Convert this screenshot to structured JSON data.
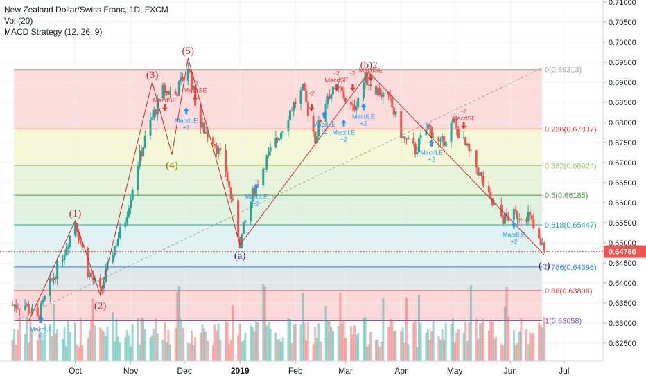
{
  "header": {
    "symbol_line": "New Zealand Dollar/Swiss Franc, 1D, FXCM",
    "indicator_vol": "Vol (20)",
    "indicator_macd": "MACD Strategy (12, 26, 9)"
  },
  "colors": {
    "up": "#26a69a",
    "down": "#ef5350",
    "wave": "#c62828",
    "signal_long": "#2196f3",
    "signal_short": "#e53935",
    "current_price_bg": "#ef5350"
  },
  "chart_data": {
    "type": "candlestick",
    "symbol": "New Zealand Dollar/Swiss Franc",
    "timeframe": "1D",
    "source": "FXCM",
    "y_range": [
      0.6205,
      0.7105
    ],
    "price_ticks": [
      "0.71000",
      "0.70500",
      "0.70000",
      "0.69500",
      "0.69000",
      "0.68500",
      "0.68000",
      "0.67500",
      "0.67000",
      "0.66500",
      "0.66000",
      "0.65500",
      "0.65000",
      "0.64500",
      "0.64000",
      "0.63500",
      "0.63000",
      "0.62500"
    ],
    "x_ticks": [
      {
        "label": "Oct",
        "date": "2018-10-01"
      },
      {
        "label": "Nov",
        "date": "2018-11-01"
      },
      {
        "label": "Dec",
        "date": "2018-12-01"
      },
      {
        "label": "2019",
        "date": "2019-01-01"
      },
      {
        "label": "Feb",
        "date": "2019-02-01"
      },
      {
        "label": "Mar",
        "date": "2019-03-01"
      },
      {
        "label": "Apr",
        "date": "2019-04-01"
      },
      {
        "label": "May",
        "date": "2019-05-01"
      },
      {
        "label": "Jun",
        "date": "2019-06-01"
      },
      {
        "label": "Jul",
        "date": "2019-07-01"
      }
    ],
    "current_price": {
      "label": "0.64780",
      "value": 0.6478
    },
    "price_path": [
      [
        "2018-09-03",
        0.6345
      ],
      [
        "2018-09-10",
        0.631
      ],
      [
        "2018-09-17",
        0.6395
      ],
      [
        "2018-09-24",
        0.647
      ],
      [
        "2018-10-01",
        0.6555
      ],
      [
        "2018-10-08",
        0.643
      ],
      [
        "2018-10-15",
        0.6375
      ],
      [
        "2018-10-22",
        0.648
      ],
      [
        "2018-10-29",
        0.656
      ],
      [
        "2018-11-05",
        0.67
      ],
      [
        "2018-11-12",
        0.68
      ],
      [
        "2018-11-19",
        0.688
      ],
      [
        "2018-11-26",
        0.687
      ],
      [
        "2018-12-03",
        0.694
      ],
      [
        "2018-12-10",
        0.679
      ],
      [
        "2018-12-17",
        0.676
      ],
      [
        "2018-12-24",
        0.668
      ],
      [
        "2019-01-01",
        0.65
      ],
      [
        "2019-01-08",
        0.662
      ],
      [
        "2019-01-15",
        0.67
      ],
      [
        "2019-01-22",
        0.676
      ],
      [
        "2019-01-29",
        0.683
      ],
      [
        "2019-02-05",
        0.688
      ],
      [
        "2019-02-12",
        0.676
      ],
      [
        "2019-02-19",
        0.687
      ],
      [
        "2019-02-26",
        0.688
      ],
      [
        "2019-03-05",
        0.683
      ],
      [
        "2019-03-12",
        0.691
      ],
      [
        "2019-03-19",
        0.688
      ],
      [
        "2019-03-26",
        0.685
      ],
      [
        "2019-04-02",
        0.676
      ],
      [
        "2019-04-09",
        0.673
      ],
      [
        "2019-04-16",
        0.679
      ],
      [
        "2019-04-23",
        0.674
      ],
      [
        "2019-04-30",
        0.68
      ],
      [
        "2019-05-07",
        0.674
      ],
      [
        "2019-05-14",
        0.668
      ],
      [
        "2019-05-21",
        0.66
      ],
      [
        "2019-05-28",
        0.656
      ],
      [
        "2019-06-04",
        0.657
      ],
      [
        "2019-06-11",
        0.657
      ],
      [
        "2019-06-18",
        0.649
      ]
    ],
    "fibonacci": [
      {
        "label": "0(0.69313)",
        "level": 0.69313,
        "color": "#9e9e9e",
        "fill": "rgba(239,83,80,0.20)"
      },
      {
        "label": "0.236(0.67837)",
        "level": 0.67837,
        "color": "#e53935",
        "fill": "rgba(205,220,57,0.20)"
      },
      {
        "label": "0.382(0.66924)",
        "level": 0.66924,
        "color": "#9ccc65",
        "fill": "rgba(139,195,74,0.20)"
      },
      {
        "label": "0.5(0.66185)",
        "level": 0.66185,
        "color": "#43a047",
        "fill": "rgba(76,175,80,0.18)"
      },
      {
        "label": "0.618(0.65447)",
        "level": 0.65447,
        "color": "#26a69a",
        "fill": "rgba(38,166,154,0.14)"
      },
      {
        "label": "0.786(0.64396)",
        "level": 0.64396,
        "color": "#1e88e5",
        "fill": "rgba(96,125,139,0.18)"
      },
      {
        "label": "0.88(0.63808)",
        "level": 0.63808,
        "color": "#e53935",
        "fill": "rgba(239,83,80,0.22)"
      },
      {
        "label": "1(0.63058)",
        "level": 0.63058,
        "color": "#7e57c2",
        "fill": null
      }
    ],
    "waves": [
      {
        "label": "(1)",
        "date": "2018-10-01",
        "price": 0.6555,
        "place": "above"
      },
      {
        "label": "(2)",
        "date": "2018-10-15",
        "price": 0.637,
        "place": "below"
      },
      {
        "label": "(3)",
        "date": "2018-11-13",
        "price": 0.69,
        "place": "above"
      },
      {
        "label": "(4)",
        "date": "2018-11-24",
        "price": 0.672,
        "place": "below"
      },
      {
        "label": "(5)",
        "date": "2018-12-03",
        "price": 0.696,
        "place": "above"
      },
      {
        "label": "(a)",
        "date": "2019-01-01",
        "price": 0.6495,
        "place": "below"
      },
      {
        "label": "(b)2",
        "date": "2019-03-14",
        "price": 0.6925,
        "place": "above"
      },
      {
        "label": "(c)",
        "date": "2019-06-20",
        "price": 0.647,
        "place": "below"
      }
    ],
    "signals": [
      {
        "type": "long",
        "text": "MacdLE",
        "sub": "+2",
        "date": "2018-09-12",
        "price": 0.63
      },
      {
        "type": "short",
        "text": "MacdSE",
        "sub": "-2",
        "date": "2018-11-20",
        "price": 0.6845
      },
      {
        "type": "long",
        "text": "MacdLE",
        "sub": "+2",
        "date": "2018-12-02",
        "price": 0.682
      },
      {
        "type": "short",
        "text": "MacdSE",
        "sub": "-2",
        "date": "2018-12-07",
        "price": 0.687
      },
      {
        "type": "long",
        "text": "MacdLE",
        "sub": "+2",
        "date": "2019-01-10",
        "price": 0.663
      },
      {
        "type": "short",
        "text": "",
        "sub": "-2",
        "date": "2019-02-10",
        "price": 0.6845
      },
      {
        "type": "long",
        "text": "MacdLE",
        "sub": "+2",
        "date": "2019-02-17",
        "price": 0.681
      },
      {
        "type": "short",
        "text": "MacdSE",
        "sub": "-2",
        "date": "2019-02-24",
        "price": 0.6895
      },
      {
        "type": "long",
        "text": "MacdLE",
        "sub": "+2",
        "date": "2019-02-28",
        "price": 0.679
      },
      {
        "type": "short",
        "text": "-2",
        "sub": "-2",
        "date": "2019-03-05",
        "price": 0.6895
      },
      {
        "type": "long",
        "text": "MacdLE",
        "sub": "+2",
        "date": "2019-03-11",
        "price": 0.683
      },
      {
        "type": "short",
        "text": "MacdSE",
        "sub": "",
        "date": "2019-03-15",
        "price": 0.692
      },
      {
        "type": "long",
        "text": "MacdLE",
        "sub": "+2",
        "date": "2019-04-18",
        "price": 0.674
      },
      {
        "type": "short",
        "text": "MacdSE",
        "sub": "-2",
        "date": "2019-05-06",
        "price": 0.68
      },
      {
        "type": "long",
        "text": "MacdLE",
        "sub": "+2",
        "date": "2019-06-03",
        "price": 0.6535
      }
    ],
    "volume_range": [
      0,
      1
    ]
  }
}
